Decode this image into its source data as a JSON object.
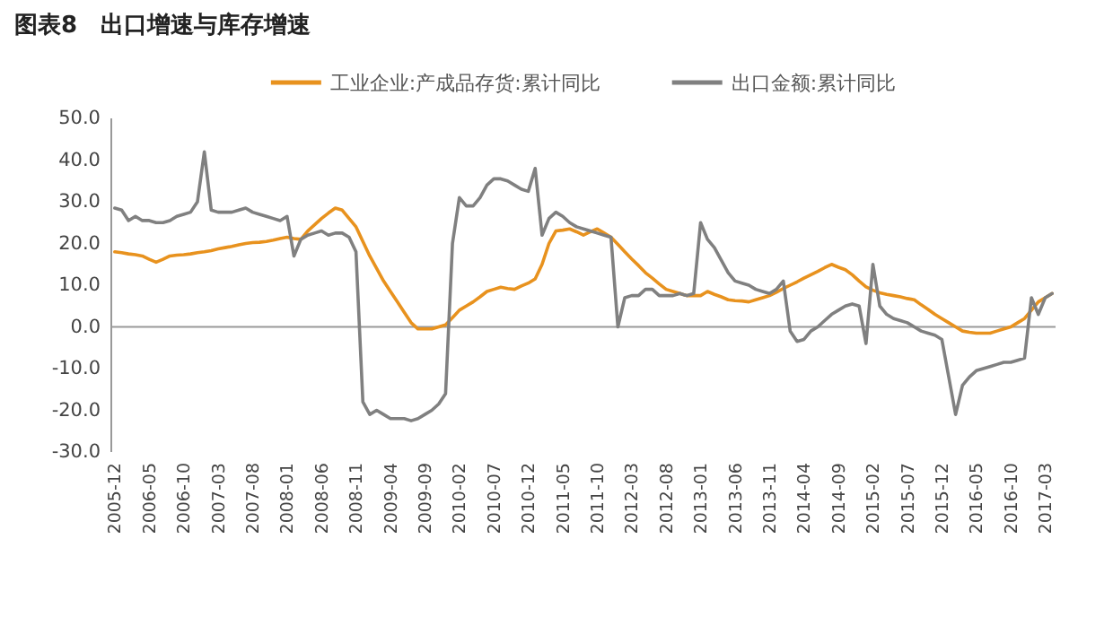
{
  "chart_data": {
    "type": "line",
    "title": "图表8　出口增速与库存增速",
    "categories": [
      "2005-12",
      null,
      null,
      null,
      null,
      "2006-05",
      null,
      null,
      null,
      null,
      "2006-10",
      null,
      null,
      null,
      null,
      "2007-03",
      null,
      null,
      null,
      null,
      "2007-08",
      null,
      null,
      null,
      null,
      "2008-01",
      null,
      null,
      null,
      null,
      "2008-06",
      null,
      null,
      null,
      null,
      "2008-11",
      null,
      null,
      null,
      null,
      "2009-04",
      null,
      null,
      null,
      null,
      "2009-09",
      null,
      null,
      null,
      null,
      "2010-02",
      null,
      null,
      null,
      null,
      "2010-07",
      null,
      null,
      null,
      null,
      "2010-12",
      null,
      null,
      null,
      null,
      "2011-05",
      null,
      null,
      null,
      null,
      "2011-10",
      null,
      null,
      null,
      null,
      "2012-03",
      null,
      null,
      null,
      null,
      "2012-08",
      null,
      null,
      null,
      null,
      "2013-01",
      null,
      null,
      null,
      null,
      "2013-06",
      null,
      null,
      null,
      null,
      "2013-11",
      null,
      null,
      null,
      null,
      "2014-04",
      null,
      null,
      null,
      null,
      "2014-09",
      null,
      null,
      null,
      null,
      "2015-02",
      null,
      null,
      null,
      null,
      "2015-07",
      null,
      null,
      null,
      null,
      "2015-12",
      null,
      null,
      null,
      null,
      "2016-05",
      null,
      null,
      null,
      null,
      "2016-10",
      null,
      null,
      null,
      null,
      "2017-03",
      null
    ],
    "series": [
      {
        "name": "工业企业:产成品存货:累计同比",
        "color": "#e8921e",
        "values": [
          18,
          17.8,
          17.5,
          17.3,
          17,
          16.2,
          15.5,
          16.2,
          17,
          17.2,
          17.3,
          17.5,
          17.8,
          18,
          18.3,
          18.7,
          19,
          19.3,
          19.7,
          20,
          20.2,
          20.3,
          20.5,
          20.8,
          21.2,
          21.5,
          21.2,
          21,
          23,
          24.5,
          26,
          27.3,
          28.5,
          28,
          26,
          24,
          20.5,
          17,
          14,
          11,
          8.5,
          6,
          3.5,
          1,
          -0.5,
          -0.5,
          -0.5,
          0,
          0.5,
          2.2,
          4,
          5,
          6,
          7.2,
          8.5,
          9,
          9.5,
          9.2,
          9,
          9.8,
          10.5,
          11.5,
          15,
          20,
          23,
          23.2,
          23.5,
          22.8,
          22,
          22.8,
          23.5,
          22.5,
          21.5,
          19.8,
          18,
          16.3,
          14.7,
          13,
          11.7,
          10.3,
          9,
          8.5,
          8,
          7.5,
          7.5,
          7.5,
          8.5,
          7.8,
          7.2,
          6.5,
          6.3,
          6.2,
          6,
          6.5,
          7,
          7.5,
          8.3,
          9.2,
          10,
          10.8,
          11.7,
          12.5,
          13.3,
          14.2,
          15,
          14.3,
          13.7,
          12.5,
          11,
          9.6,
          8.8,
          8.2,
          7.8,
          7.5,
          7.2,
          6.8,
          6.5,
          5.3,
          4.2,
          3,
          2,
          1,
          0,
          -1,
          -1.3,
          -1.5,
          -1.5,
          -1.5,
          -1,
          -0.5,
          0,
          1,
          2,
          4,
          6,
          7,
          8
        ]
      },
      {
        "name": "出口金额:累计同比",
        "color": "#808080",
        "values": [
          28.5,
          28,
          25.5,
          26.5,
          25.5,
          25.5,
          25,
          25,
          25.5,
          26.5,
          27,
          27.5,
          30,
          42,
          28,
          27.5,
          27.5,
          27.5,
          28,
          28.5,
          27.5,
          27,
          26.5,
          26,
          25.5,
          26.5,
          17,
          21,
          22,
          22.5,
          23,
          22,
          22.5,
          22.5,
          21.5,
          18,
          -18,
          -21,
          -20,
          -21,
          -22,
          -22,
          -22,
          -22.5,
          -22,
          -21,
          -20,
          -18.5,
          -16,
          20,
          31,
          29,
          29,
          31,
          34,
          35.5,
          35.5,
          35,
          34,
          33,
          32.5,
          38,
          22,
          26,
          27.5,
          26.5,
          25,
          24,
          23.5,
          23,
          22.5,
          22,
          21.5,
          0,
          7,
          7.5,
          7.5,
          9,
          9,
          7.5,
          7.5,
          7.5,
          8,
          7.5,
          8,
          25,
          21,
          19,
          16,
          13,
          11,
          10.5,
          10,
          9,
          8.5,
          8,
          9,
          11,
          -1,
          -3.5,
          -3,
          -1,
          0,
          1.5,
          3,
          4,
          5,
          5.5,
          5,
          -4,
          15,
          5,
          3,
          2,
          1.5,
          1,
          0,
          -1,
          -1.5,
          -2,
          -3,
          -12,
          -21,
          -14,
          -12,
          -10.5,
          -10,
          -9.5,
          -9,
          -8.5,
          -8.5,
          -8,
          -7.5,
          7,
          3,
          7,
          8
        ]
      }
    ],
    "ylim": [
      -30,
      50
    ],
    "yticks": [
      {
        "value": 50,
        "label": "50.0"
      },
      {
        "value": 40,
        "label": "40.0"
      },
      {
        "value": 30,
        "label": "30.0"
      },
      {
        "value": 20,
        "label": "20.0"
      },
      {
        "value": 10,
        "label": "10.0"
      },
      {
        "value": 0,
        "label": "0.0"
      },
      {
        "value": -10,
        "label": "-10.0"
      },
      {
        "value": -20,
        "label": "-20.0"
      },
      {
        "value": -30,
        "label": "-30.0"
      }
    ],
    "legend": "top",
    "line_style": "solid"
  }
}
